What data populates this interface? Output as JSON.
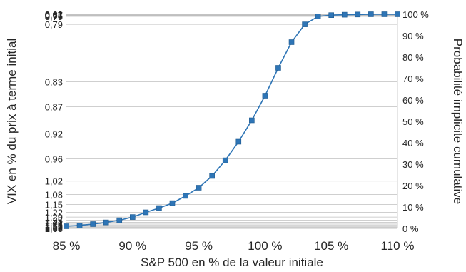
{
  "chart_data": {
    "type": "line",
    "xlabel": "S&P 500 en % de la valeur initiale",
    "ylabel_left": "VIX en % du prix à terme initial",
    "ylabel_right": "Probabilité implicite cumulative",
    "x_ticks": [
      "85 %",
      "90 %",
      "95 %",
      "100 %",
      "105 %",
      "110 %"
    ],
    "x_range": [
      85,
      110
    ],
    "right_ticks": [
      "0 %",
      "10 %",
      "20 %",
      "30 %",
      "40 %",
      "50 %",
      "60 %",
      "70 %",
      "80 %",
      "90 %",
      "100 %"
    ],
    "right_range": [
      0,
      1
    ],
    "left_ticks": [
      {
        "label": "1,66",
        "p": 0.0
      },
      {
        "label": "1,62",
        "p": 0.003
      },
      {
        "label": "1,59",
        "p": 0.006
      },
      {
        "label": "1,55",
        "p": 0.01
      },
      {
        "label": "1,51",
        "p": 0.014
      },
      {
        "label": "1,46",
        "p": 0.02
      },
      {
        "label": "1,41",
        "p": 0.028
      },
      {
        "label": "1,35",
        "p": 0.038
      },
      {
        "label": "1,29",
        "p": 0.053
      },
      {
        "label": "1,22",
        "p": 0.075
      },
      {
        "label": "1,15",
        "p": 0.112
      },
      {
        "label": "1,08",
        "p": 0.158
      },
      {
        "label": "1,02",
        "p": 0.221
      },
      {
        "label": "0,96",
        "p": 0.325
      },
      {
        "label": "0,92",
        "p": 0.442
      },
      {
        "label": "0,87",
        "p": 0.568
      },
      {
        "label": "0,83",
        "p": 0.685
      },
      {
        "label": "0,79",
        "p": 0.953
      },
      {
        "label": "0,75",
        "p": 0.99
      },
      {
        "label": "0,71",
        "p": 0.994
      },
      {
        "label": "0,67",
        "p": 0.996
      },
      {
        "label": "0,64",
        "p": 0.998
      },
      {
        "label": "0,62",
        "p": 1.0
      }
    ],
    "series": [
      {
        "color": "#2e75b6",
        "x": [
          85,
          86,
          87,
          88,
          89,
          90,
          91,
          92,
          93,
          94,
          95,
          96,
          97,
          98,
          99,
          100,
          101,
          102,
          103,
          104,
          105,
          106,
          107,
          108,
          109,
          110
        ],
        "y": [
          0.01,
          0.014,
          0.02,
          0.028,
          0.038,
          0.053,
          0.075,
          0.095,
          0.118,
          0.152,
          0.19,
          0.245,
          0.318,
          0.405,
          0.505,
          0.62,
          0.75,
          0.87,
          0.953,
          0.99,
          0.996,
          0.998,
          0.999,
          1.0,
          1.0,
          1.0
        ]
      }
    ],
    "grid": "horizontal"
  }
}
